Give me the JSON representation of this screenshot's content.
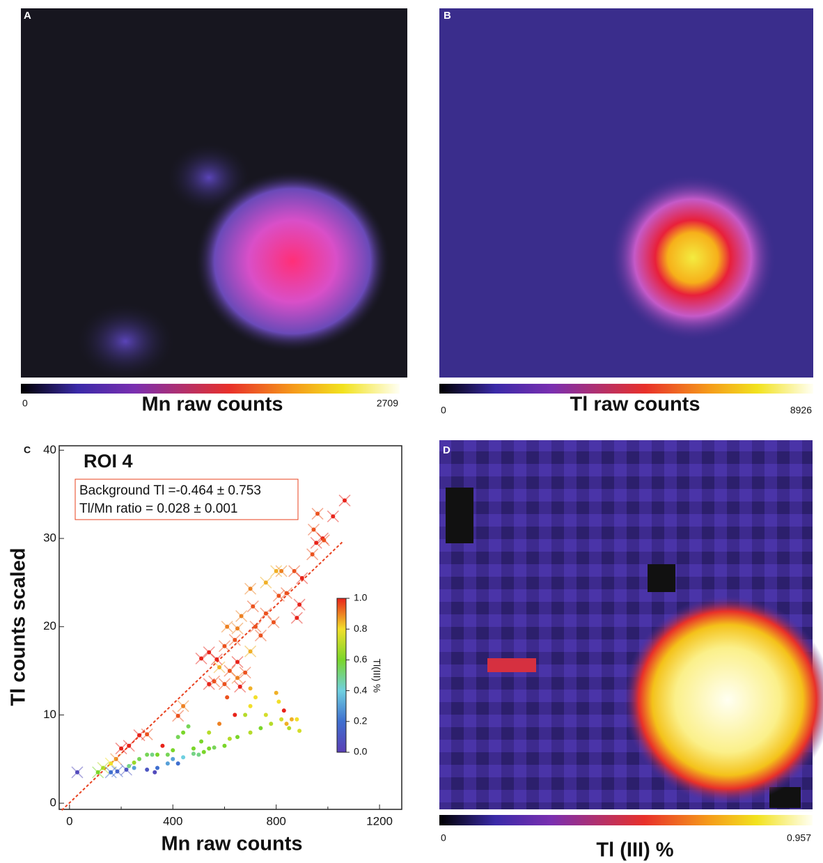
{
  "chart_data": [
    {
      "type": "heatmap",
      "panel_label": "A",
      "colorbar": {
        "label": "Mn raw counts",
        "clim": [
          0,
          2709
        ],
        "ticks": [
          0,
          2709
        ]
      }
    },
    {
      "type": "heatmap",
      "panel_label": "B",
      "colorbar": {
        "label": "Tl raw counts",
        "clim": [
          0,
          8926
        ],
        "ticks": [
          0,
          8926
        ]
      }
    },
    {
      "type": "scatter",
      "panel_label": "C",
      "title": "ROI 4",
      "annotations": [
        "Background Tl =-0.464 ± 0.753",
        "Tl/Mn ratio = 0.028 ± 0.001"
      ],
      "xlabel": "Mn raw counts",
      "ylabel": "Tl counts scaled",
      "xlim": [
        -40,
        1286
      ],
      "ylim": [
        -0.7,
        40.5
      ],
      "xticks": [
        0,
        400,
        800,
        1200
      ],
      "xminor": [
        200,
        600,
        1000
      ],
      "yticks": [
        0,
        10,
        20,
        30,
        40
      ],
      "fit_line": {
        "x": [
          -30,
          1060
        ],
        "y": [
          -0.8,
          29.7
        ],
        "color": "#e8401e"
      },
      "crossed_points": {
        "x": [
          1065,
          1020,
          960,
          945,
          980,
          955,
          985,
          940,
          870,
          820,
          800,
          900,
          840,
          810,
          760,
          700,
          890,
          880,
          710,
          760,
          665,
          790,
          720,
          650,
          610,
          740,
          640,
          600,
          540,
          510,
          570,
          650,
          700,
          620,
          680,
          650,
          600,
          580,
          560,
          540,
          660,
          440,
          420,
          300,
          270,
          230,
          200,
          180,
          160,
          130,
          110,
          30,
          220,
          185,
          160
        ],
        "y": [
          34.3,
          32.5,
          32.8,
          31,
          30,
          29.5,
          29.8,
          28.2,
          26.3,
          26.3,
          26.3,
          25.5,
          23.8,
          23.5,
          25,
          24.3,
          22.5,
          21,
          22.3,
          21.5,
          21.2,
          20.5,
          20,
          19.8,
          20,
          19,
          18.5,
          17.8,
          17.1,
          16.4,
          16.3,
          16,
          17.2,
          15,
          14.8,
          14.2,
          13.5,
          15.4,
          13.8,
          13.5,
          13.2,
          11,
          9.9,
          7.8,
          7.7,
          6.5,
          6.2,
          5,
          4.5,
          4,
          3.5,
          3.5,
          3.8,
          3.6,
          3.5
        ],
        "z": [
          1,
          1,
          0.95,
          0.95,
          1,
          1,
          0.95,
          0.95,
          0.95,
          0.9,
          0.85,
          1,
          0.95,
          0.95,
          0.85,
          0.9,
          1,
          1,
          0.95,
          0.95,
          0.9,
          0.95,
          0.95,
          0.9,
          0.9,
          0.95,
          0.95,
          0.95,
          1,
          1,
          1,
          1,
          0.85,
          0.95,
          0.95,
          0.9,
          0.95,
          0.85,
          0.95,
          1,
          1,
          0.9,
          0.95,
          0.95,
          1,
          1,
          1,
          0.9,
          0.8,
          0.7,
          0.6,
          0.05,
          0.1,
          0.15,
          0.2
        ]
      },
      "points": {
        "x": [
          700,
          720,
          700,
          680,
          800,
          810,
          830,
          840,
          860,
          880,
          890,
          850,
          820,
          780,
          760,
          740,
          700,
          650,
          640,
          610,
          580,
          540,
          510,
          480,
          460,
          440,
          420,
          400,
          380,
          360,
          340,
          320,
          300,
          270,
          250,
          620,
          600,
          560,
          540,
          520,
          500,
          480,
          440,
          400,
          380,
          340,
          330,
          300,
          420,
          250,
          230
        ],
        "y": [
          13,
          12,
          11,
          10,
          12.5,
          11.5,
          10.5,
          9,
          9.5,
          9.5,
          8.2,
          8.5,
          9.5,
          9,
          10,
          8.5,
          8,
          7.5,
          10,
          12,
          9,
          8,
          7,
          6.2,
          8.7,
          8,
          7.5,
          6,
          5.5,
          6.5,
          5.5,
          5.5,
          5.5,
          5,
          4.6,
          7.3,
          6.5,
          6.3,
          6.2,
          5.8,
          5.5,
          5.6,
          5.2,
          5,
          4.5,
          4,
          3.5,
          3.8,
          4.5,
          4,
          4.2
        ],
        "z": [
          0.85,
          0.8,
          0.8,
          0.7,
          0.85,
          0.8,
          1,
          0.85,
          0.85,
          0.8,
          0.75,
          0.7,
          0.75,
          0.7,
          0.75,
          0.6,
          0.7,
          0.6,
          1,
          0.95,
          0.9,
          0.7,
          0.6,
          0.6,
          0.55,
          0.6,
          0.55,
          0.6,
          0.55,
          1,
          0.6,
          0.5,
          0.55,
          0.55,
          0.65,
          0.7,
          0.6,
          0.55,
          0.6,
          0.6,
          0.5,
          0.5,
          0.4,
          0.3,
          0.3,
          0.2,
          0.05,
          0.1,
          0.2,
          0.3,
          0.5
        ]
      },
      "colorbar": {
        "label": "Tl(III) %",
        "clim": [
          0,
          1
        ],
        "ticks": [
          {
            "value": 0,
            "label": "0.0"
          },
          {
            "value": 0.2,
            "label": "0.2"
          },
          {
            "value": 0.4,
            "label": "0.4"
          },
          {
            "value": 0.6,
            "label": "0.6"
          },
          {
            "value": 0.8,
            "label": "0.8"
          },
          {
            "value": 1,
            "label": "1.0"
          }
        ]
      }
    },
    {
      "type": "heatmap",
      "panel_label": "D",
      "colorbar": {
        "label": "Tl (III) %",
        "clim": [
          0,
          0.957
        ],
        "ticks": [
          0,
          0.957
        ]
      }
    }
  ]
}
